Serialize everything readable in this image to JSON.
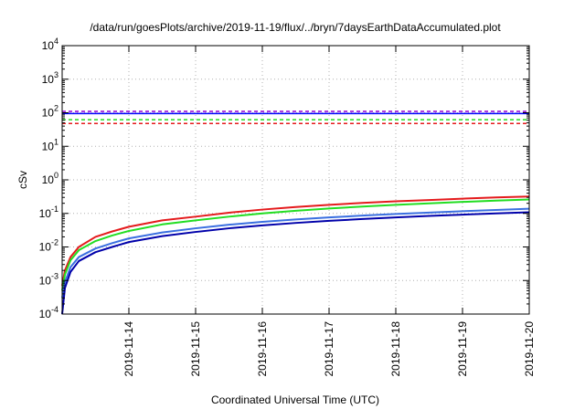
{
  "chart_data": {
    "type": "line",
    "title": "/data/run/goesPlots/archive/2019-11-19/flux/../bryn/7daysEarthDataAccumulated.plot",
    "xlabel": "Coordinated Universal Time (UTC)",
    "ylabel": "cSv",
    "y_scale": "log",
    "ylim": [
      0.0001,
      10000
    ],
    "xlim": [
      "2019-11-13T00:00",
      "2019-11-20T00:00"
    ],
    "y_ticks": [
      {
        "base": "10",
        "exp": "-4",
        "value": 0.0001
      },
      {
        "base": "10",
        "exp": "-3",
        "value": 0.001
      },
      {
        "base": "10",
        "exp": "-2",
        "value": 0.01
      },
      {
        "base": "10",
        "exp": "-1",
        "value": 0.1
      },
      {
        "base": "10",
        "exp": "0",
        "value": 1
      },
      {
        "base": "10",
        "exp": "1",
        "value": 10
      },
      {
        "base": "10",
        "exp": "2",
        "value": 100
      },
      {
        "base": "10",
        "exp": "3",
        "value": 1000
      },
      {
        "base": "10",
        "exp": "4",
        "value": 10000
      }
    ],
    "x_ticks": [
      "2019-11-14",
      "2019-11-15",
      "2019-11-16",
      "2019-11-17",
      "2019-11-18",
      "2019-11-19",
      "2019-11-20"
    ],
    "grid": true,
    "x": [
      "2019-11-13T00:00",
      "2019-11-13T01:00",
      "2019-11-13T03:00",
      "2019-11-13T06:00",
      "2019-11-13T12:00",
      "2019-11-13T18:00",
      "2019-11-14T00:00",
      "2019-11-14T12:00",
      "2019-11-15T00:00",
      "2019-11-15T12:00",
      "2019-11-16T00:00",
      "2019-11-16T12:00",
      "2019-11-17T00:00",
      "2019-11-17T12:00",
      "2019-11-18T00:00",
      "2019-11-18T12:00",
      "2019-11-19T00:00",
      "2019-11-19T12:00",
      "2019-11-20T00:00"
    ],
    "series": [
      {
        "color": "#e41a1c",
        "values": [
          0.0007,
          0.002,
          0.005,
          0.01,
          0.02,
          0.029,
          0.04,
          0.062,
          0.08,
          0.105,
          0.13,
          0.155,
          0.18,
          0.205,
          0.23,
          0.25,
          0.275,
          0.3,
          0.32
        ]
      },
      {
        "color": "#22dd22",
        "values": [
          0.0005,
          0.0015,
          0.004,
          0.008,
          0.015,
          0.022,
          0.03,
          0.047,
          0.062,
          0.08,
          0.1,
          0.12,
          0.14,
          0.16,
          0.18,
          0.2,
          0.22,
          0.24,
          0.26
        ]
      },
      {
        "color": "#3a6fe0",
        "values": [
          0.0003,
          0.0009,
          0.0025,
          0.005,
          0.009,
          0.013,
          0.018,
          0.027,
          0.036,
          0.046,
          0.056,
          0.066,
          0.076,
          0.086,
          0.096,
          0.106,
          0.116,
          0.126,
          0.138
        ]
      },
      {
        "color": "#0000aa",
        "values": [
          0.0001,
          0.0006,
          0.0018,
          0.0038,
          0.007,
          0.01,
          0.014,
          0.021,
          0.028,
          0.036,
          0.044,
          0.052,
          0.06,
          0.068,
          0.076,
          0.084,
          0.092,
          0.1,
          0.108
        ]
      }
    ],
    "thresholds": [
      {
        "value": 110,
        "color": "#9400d3",
        "style": "dashed"
      },
      {
        "value": 95,
        "color": "#0000ff",
        "style": "solid"
      },
      {
        "value": 62,
        "color": "#22dd22",
        "style": "dashed"
      },
      {
        "value": 48,
        "color": "#e41a1c",
        "style": "dashed"
      }
    ]
  }
}
